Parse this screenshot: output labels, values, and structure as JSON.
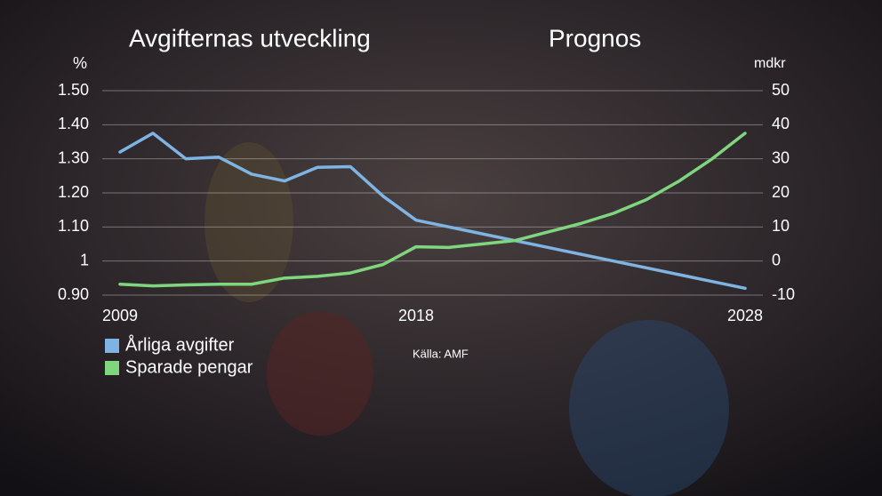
{
  "chart_data": {
    "type": "line",
    "title": "Avgifternas utveckling",
    "subtitle": "Prognos",
    "y_label": "%",
    "y2_label": "mdkr",
    "source": "Källa: AMF",
    "x": [
      2009,
      2010,
      2011,
      2012,
      2013,
      2014,
      2015,
      2016,
      2017,
      2018,
      2019,
      2020,
      2021,
      2022,
      2023,
      2024,
      2025,
      2026,
      2027,
      2028
    ],
    "series": [
      {
        "name": "Årliga avgifter",
        "color": "#7fb4e2",
        "values": [
          1.32,
          1.375,
          1.3,
          1.305,
          1.255,
          1.235,
          1.275,
          1.277,
          1.19,
          1.12,
          1.1,
          1.08,
          1.06,
          1.04,
          1.02,
          1.0,
          0.98,
          0.96,
          0.94,
          0.92
        ]
      },
      {
        "name": "Sparade pengar",
        "color": "#7fd67f",
        "axis": "y2",
        "values": [
          -6.8,
          -7.3,
          -7,
          -6.8,
          -6.8,
          -5,
          -4.5,
          -3.5,
          -1,
          4.2,
          4,
          5,
          6,
          8.5,
          11,
          14,
          18,
          23.5,
          30,
          37.5
        ]
      }
    ],
    "xlim": [
      2009,
      2028
    ],
    "xticks": [
      2009,
      2018,
      2028
    ],
    "ylim": [
      0.9,
      1.5
    ],
    "yticks": [
      {
        "value": 0.9,
        "label": "0.90"
      },
      1,
      {
        "value": 1.1,
        "label": "1.10"
      },
      {
        "value": 1.2,
        "label": "1.20"
      },
      {
        "value": 1.3,
        "label": "1.30"
      },
      {
        "value": 1.4,
        "label": "1.40"
      },
      {
        "value": 1.5,
        "label": "1.50"
      }
    ],
    "y2lim": [
      -10,
      50
    ],
    "y2ticks": [
      -10,
      0,
      10,
      20,
      30,
      40,
      50
    ],
    "grid": true
  }
}
